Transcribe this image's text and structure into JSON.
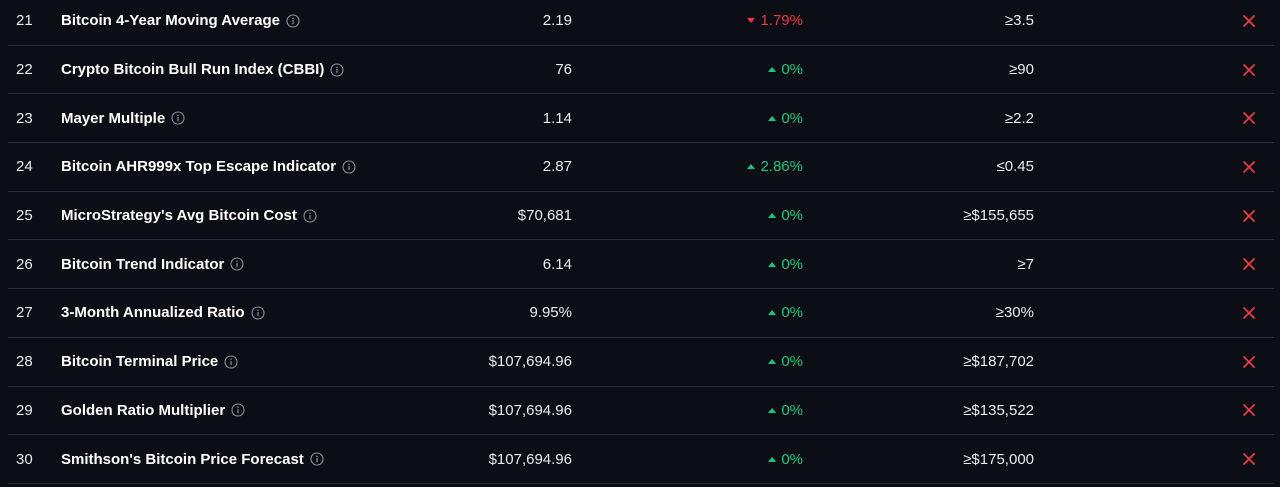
{
  "rows": [
    {
      "rank": "21",
      "name": "Bitcoin 4-Year Moving Average",
      "value": "2.19",
      "change": "1.79%",
      "direction": "down",
      "target": "≥3.5",
      "hit_icon": "x-icon"
    },
    {
      "rank": "22",
      "name": "Crypto Bitcoin Bull Run Index (CBBI)",
      "value": "76",
      "change": "0%",
      "direction": "up",
      "target": "≥90",
      "hit_icon": "x-icon"
    },
    {
      "rank": "23",
      "name": "Mayer Multiple",
      "value": "1.14",
      "change": "0%",
      "direction": "up",
      "target": "≥2.2",
      "hit_icon": "x-icon"
    },
    {
      "rank": "24",
      "name": "Bitcoin AHR999x Top Escape Indicator",
      "value": "2.87",
      "change": "2.86%",
      "direction": "up",
      "target": "≤0.45",
      "hit_icon": "x-icon"
    },
    {
      "rank": "25",
      "name": "MicroStrategy's Avg Bitcoin Cost",
      "value": "$70,681",
      "change": "0%",
      "direction": "up",
      "target": "≥$155,655",
      "hit_icon": "x-icon"
    },
    {
      "rank": "26",
      "name": "Bitcoin Trend Indicator",
      "value": "6.14",
      "change": "0%",
      "direction": "up",
      "target": "≥7",
      "hit_icon": "x-icon"
    },
    {
      "rank": "27",
      "name": "3-Month Annualized Ratio",
      "value": "9.95%",
      "change": "0%",
      "direction": "up",
      "target": "≥30%",
      "hit_icon": "x-icon"
    },
    {
      "rank": "28",
      "name": "Bitcoin Terminal Price",
      "value": "$107,694.96",
      "change": "0%",
      "direction": "up",
      "target": "≥$187,702",
      "hit_icon": "x-icon"
    },
    {
      "rank": "29",
      "name": "Golden Ratio Multiplier",
      "value": "$107,694.96",
      "change": "0%",
      "direction": "up",
      "target": "≥$135,522",
      "hit_icon": "x-icon"
    },
    {
      "rank": "30",
      "name": "Smithson's Bitcoin Price Forecast",
      "value": "$107,694.96",
      "change": "0%",
      "direction": "up",
      "target": "≥$175,000",
      "hit_icon": "x-icon"
    }
  ],
  "colors": {
    "background": "#0b0e14",
    "up": "#16c784",
    "down": "#ea3943",
    "divider": "#2a2e37"
  }
}
